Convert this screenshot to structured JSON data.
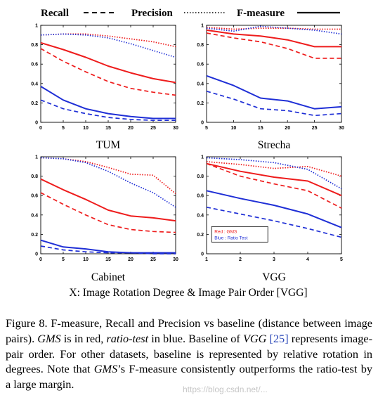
{
  "legend": {
    "items": [
      {
        "label": "Recall",
        "dash": "dashed"
      },
      {
        "label": "Precision",
        "dash": "dotted"
      },
      {
        "label": "F-measure",
        "dash": "solid"
      }
    ]
  },
  "xaxis_caption": "X: Image Rotation Degree & Image Pair Order [VGG]",
  "caption": {
    "p1": "Figure 8. F-measure, Recall and Precision vs baseline (distance between image pairs). ",
    "gms": "GMS",
    "p2": " is in red, ",
    "ratio": "ratio-test",
    "p3": " in blue. Baseline of ",
    "vgg": "VGG",
    "p4": " ",
    "cite": "[25]",
    "p5": " represents image-pair order. For other datasets, baseline is represented by relative rotation in degrees. Note that ",
    "gms2": "GMS",
    "p6": "’s F-measure consistently outperforms the ratio-test by a large margin."
  },
  "watermark": "https://blog.csdn.net/...",
  "colors": {
    "red": "#ee1c1c",
    "blue": "#1f2fd6",
    "axis": "#000000"
  },
  "chart_data": [
    {
      "type": "line",
      "title": "TUM",
      "x": [
        0,
        5,
        10,
        15,
        20,
        25,
        30
      ],
      "xticks": [
        0,
        5,
        10,
        15,
        20,
        25,
        30
      ],
      "xlim": [
        0,
        30
      ],
      "ylim": [
        0,
        1
      ],
      "yticks": [
        "0",
        "0.2",
        "0.4",
        "0.6",
        "0.8",
        "1"
      ],
      "series": [
        {
          "color": "red",
          "metric": "Precision",
          "values": [
            0.9,
            0.91,
            0.91,
            0.89,
            0.86,
            0.83,
            0.78
          ]
        },
        {
          "color": "red",
          "metric": "F-measure",
          "values": [
            0.82,
            0.75,
            0.67,
            0.58,
            0.51,
            0.45,
            0.41
          ]
        },
        {
          "color": "red",
          "metric": "Recall",
          "values": [
            0.76,
            0.63,
            0.52,
            0.42,
            0.35,
            0.31,
            0.28
          ]
        },
        {
          "color": "blue",
          "metric": "Precision",
          "values": [
            0.9,
            0.91,
            0.9,
            0.87,
            0.81,
            0.74,
            0.67
          ]
        },
        {
          "color": "blue",
          "metric": "F-measure",
          "values": [
            0.37,
            0.23,
            0.14,
            0.09,
            0.06,
            0.04,
            0.04
          ]
        },
        {
          "color": "blue",
          "metric": "Recall",
          "values": [
            0.23,
            0.14,
            0.09,
            0.05,
            0.03,
            0.02,
            0.02
          ]
        }
      ]
    },
    {
      "type": "line",
      "title": "Strecha",
      "x": [
        5,
        10,
        15,
        20,
        25,
        30
      ],
      "xticks": [
        5,
        10,
        15,
        20,
        25,
        30
      ],
      "xlim": [
        5,
        30
      ],
      "ylim": [
        0,
        1
      ],
      "yticks": [
        "0",
        "0.2",
        "0.4",
        "0.6",
        "0.8",
        "1"
      ],
      "series": [
        {
          "color": "red",
          "metric": "Precision",
          "values": [
            0.98,
            0.96,
            0.97,
            0.97,
            0.96,
            0.96
          ]
        },
        {
          "color": "red",
          "metric": "F-measure",
          "values": [
            0.95,
            0.91,
            0.89,
            0.85,
            0.78,
            0.78
          ]
        },
        {
          "color": "red",
          "metric": "Recall",
          "values": [
            0.92,
            0.87,
            0.83,
            0.76,
            0.66,
            0.66
          ]
        },
        {
          "color": "blue",
          "metric": "Precision",
          "values": [
            0.97,
            0.94,
            0.99,
            0.97,
            0.95,
            0.91
          ]
        },
        {
          "color": "blue",
          "metric": "F-measure",
          "values": [
            0.48,
            0.38,
            0.25,
            0.22,
            0.14,
            0.16
          ]
        },
        {
          "color": "blue",
          "metric": "Recall",
          "values": [
            0.32,
            0.24,
            0.14,
            0.12,
            0.07,
            0.09
          ]
        }
      ]
    },
    {
      "type": "line",
      "title": "Cabinet",
      "x": [
        0,
        5,
        10,
        15,
        20,
        25,
        30
      ],
      "xticks": [
        0,
        5,
        10,
        15,
        20,
        25,
        30
      ],
      "xlim": [
        0,
        30
      ],
      "ylim": [
        0,
        1
      ],
      "yticks": [
        "0",
        "0.2",
        "0.4",
        "0.6",
        "0.8",
        "1"
      ],
      "series": [
        {
          "color": "red",
          "metric": "Precision",
          "values": [
            0.99,
            0.98,
            0.95,
            0.89,
            0.82,
            0.81,
            0.62
          ]
        },
        {
          "color": "red",
          "metric": "F-measure",
          "values": [
            0.77,
            0.66,
            0.56,
            0.45,
            0.39,
            0.37,
            0.34
          ]
        },
        {
          "color": "red",
          "metric": "Recall",
          "values": [
            0.63,
            0.51,
            0.4,
            0.3,
            0.25,
            0.23,
            0.22
          ]
        },
        {
          "color": "blue",
          "metric": "Precision",
          "values": [
            0.99,
            0.98,
            0.94,
            0.85,
            0.73,
            0.63,
            0.48
          ]
        },
        {
          "color": "blue",
          "metric": "F-measure",
          "values": [
            0.14,
            0.07,
            0.05,
            0.02,
            0.01,
            0.01,
            0.01
          ]
        },
        {
          "color": "blue",
          "metric": "Recall",
          "values": [
            0.08,
            0.04,
            0.02,
            0.01,
            0.01,
            0.0,
            0.0
          ]
        }
      ]
    },
    {
      "type": "line",
      "title": "VGG",
      "x": [
        1,
        2,
        3,
        4,
        5
      ],
      "xticks": [
        1,
        2,
        3,
        4,
        5
      ],
      "xlim": [
        1,
        5
      ],
      "ylim": [
        0,
        1
      ],
      "yticks": [
        "0",
        "0.2",
        "0.4",
        "0.6",
        "0.8",
        "1"
      ],
      "legend_box": {
        "red_label": "Red : GMS",
        "blue_label": "Blue : Ratio Test"
      },
      "series": [
        {
          "color": "red",
          "metric": "Precision",
          "values": [
            0.95,
            0.92,
            0.88,
            0.9,
            0.8
          ]
        },
        {
          "color": "red",
          "metric": "F-measure",
          "values": [
            0.93,
            0.85,
            0.79,
            0.75,
            0.6
          ]
        },
        {
          "color": "red",
          "metric": "Recall",
          "values": [
            0.93,
            0.8,
            0.72,
            0.65,
            0.47
          ]
        },
        {
          "color": "blue",
          "metric": "Precision",
          "values": [
            0.99,
            0.97,
            0.94,
            0.87,
            0.67
          ]
        },
        {
          "color": "blue",
          "metric": "F-measure",
          "values": [
            0.65,
            0.57,
            0.5,
            0.41,
            0.27
          ]
        },
        {
          "color": "blue",
          "metric": "Recall",
          "values": [
            0.48,
            0.41,
            0.34,
            0.26,
            0.17
          ]
        }
      ]
    }
  ]
}
